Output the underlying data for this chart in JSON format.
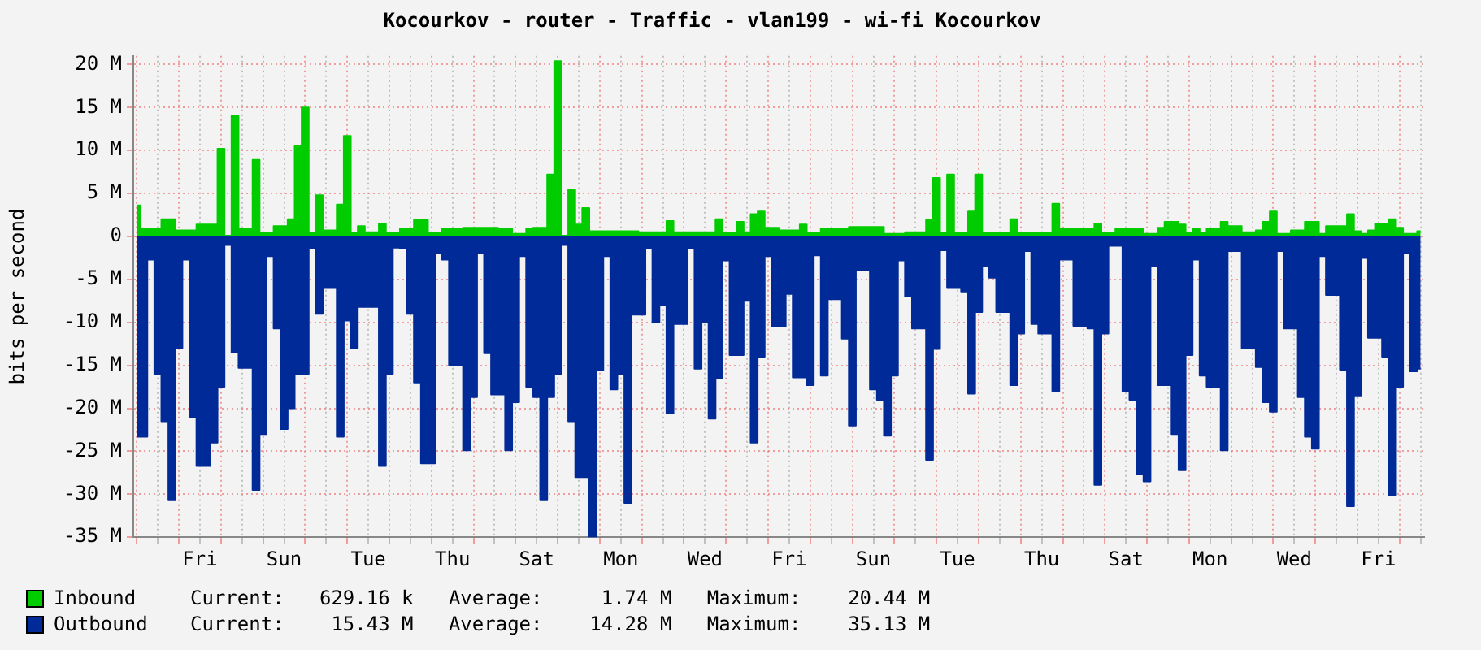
{
  "chart_data": {
    "type": "area",
    "title": "Kocourkov - router - Traffic - vlan199 - wi-fi Kocourkov",
    "ylabel": "bits per second",
    "categories": [
      null,
      null,
      null,
      null,
      null,
      null,
      null,
      null,
      null,
      "Fri",
      null,
      null,
      null,
      null,
      null,
      null,
      null,
      null,
      null,
      null,
      null,
      "Sun",
      null,
      null,
      null,
      null,
      null,
      null,
      null,
      null,
      null,
      null,
      null,
      "Tue",
      null,
      null,
      null,
      null,
      null,
      null,
      null,
      null,
      null,
      null,
      null,
      "Thu",
      null,
      null,
      null,
      null,
      null,
      null,
      null,
      null,
      null,
      null,
      null,
      "Sat",
      null,
      null,
      null,
      null,
      null,
      null,
      null,
      null,
      null,
      null,
      null,
      "Mon",
      null,
      null,
      null,
      null,
      null,
      null,
      null,
      null,
      null,
      null,
      null,
      "Wed",
      null,
      null,
      null,
      null,
      null,
      null,
      null,
      null,
      null,
      null,
      null,
      "Fri",
      null,
      null,
      null,
      null,
      null,
      null,
      null,
      null,
      null,
      null,
      null,
      "Sun",
      null,
      null,
      null,
      null,
      null,
      null,
      null,
      null,
      null,
      null,
      null,
      "Tue",
      null,
      null,
      null,
      null,
      null,
      null,
      null,
      null,
      null,
      null,
      null,
      "Thu",
      null,
      null,
      null,
      null,
      null,
      null,
      null,
      null,
      null,
      null,
      null,
      "Sat",
      null,
      null,
      null,
      null,
      null,
      null,
      null,
      null,
      null,
      null,
      null,
      "Mon",
      null,
      null,
      null,
      null,
      null,
      null,
      null,
      null,
      null,
      null,
      null,
      "Wed",
      null,
      null,
      null,
      null,
      null,
      null,
      null,
      null,
      null,
      null,
      null,
      "Fri",
      null,
      null,
      null,
      null,
      null,
      null
    ],
    "ylim": [
      -35,
      21
    ],
    "yticks": [
      {
        "value": 20,
        "label": "20 M"
      },
      {
        "value": 15,
        "label": "15 M"
      },
      {
        "value": 10,
        "label": "10 M"
      },
      {
        "value": 5,
        "label": "5 M"
      },
      0,
      {
        "value": -5,
        "label": "-5 M"
      },
      {
        "value": -10,
        "label": "-10 M"
      },
      {
        "value": -15,
        "label": "-15 M"
      },
      {
        "value": -20,
        "label": "-20 M"
      },
      {
        "value": -25,
        "label": "-25 M"
      },
      {
        "value": -30,
        "label": "-30 M"
      },
      {
        "value": -35,
        "label": "-35 M"
      }
    ],
    "grid": true,
    "legend": "bottom",
    "annotations": [
      "Current:   629.16 k   Average:     1.74 M   Maximum:    20.44 M",
      "Current:    15.43 M   Average:    14.28 M   Maximum:    35.13 M"
    ],
    "series": [
      {
        "name": "Inbound",
        "color": "#00cc00",
        "values": [
          3.6,
          0.9,
          0.9,
          0.9,
          2,
          2,
          0.7,
          0.7,
          0.7,
          1.4,
          1.4,
          1.4,
          10.2,
          0.1,
          14,
          0.9,
          0.9,
          8.9,
          0.4,
          0.4,
          1.2,
          1.2,
          2,
          10.5,
          15,
          0.4,
          4.8,
          0.7,
          0.7,
          3.7,
          11.7,
          0.4,
          1.2,
          0.5,
          0.5,
          1.5,
          0.4,
          0.4,
          0.9,
          0.9,
          1.9,
          1.9,
          0.4,
          0.4,
          0.9,
          0.9,
          0.9,
          1,
          1,
          1,
          1,
          1,
          0.9,
          0.9,
          0.3,
          0.3,
          0.9,
          1,
          1,
          7.2,
          20.4,
          0.1,
          5.4,
          1.4,
          3.3,
          0.6,
          0.6,
          0.6,
          0.6,
          0.6,
          0.6,
          0.6,
          0.5,
          0.5,
          0.5,
          0.5,
          1.8,
          0.5,
          0.5,
          0.5,
          0.5,
          0.5,
          0.5,
          2,
          0.4,
          0.4,
          1.7,
          0.5,
          2.6,
          2.9,
          1,
          1,
          0.7,
          0.7,
          0.7,
          1.4,
          0.4,
          0.4,
          0.9,
          0.9,
          0.9,
          0.9,
          1.1,
          1.1,
          1.1,
          1.1,
          1.1,
          0.3,
          0.3,
          0.3,
          0.5,
          0.5,
          0.5,
          1.9,
          6.8,
          0.4,
          7.2,
          0.4,
          0.4,
          2.9,
          7.2,
          0.4,
          0.4,
          0.4,
          0.4,
          2,
          0.4,
          0.4,
          0.4,
          0.4,
          0.4,
          3.8,
          0.9,
          0.9,
          0.9,
          0.9,
          0.9,
          1.5,
          0.4,
          0.4,
          0.9,
          0.9,
          0.9,
          0.9,
          0.3,
          0.3,
          1,
          1.7,
          1.7,
          1.4,
          0.4,
          0.9,
          0.4,
          0.9,
          0.9,
          1.7,
          1.2,
          1.2,
          0.5,
          0.5,
          0.7,
          1.7,
          2.9,
          0.3,
          0.3,
          0.7,
          0.7,
          1.7,
          1.7,
          0.3,
          1.2,
          1.2,
          1.2,
          2.6,
          0.6,
          0.3,
          0.7,
          1.5,
          1.5,
          2,
          1,
          0.3,
          0.3,
          0.6
        ]
      },
      {
        "name": "Outbound",
        "color": "#002a97",
        "values": [
          -23.3,
          -23.3,
          -2.7,
          -16,
          -21.5,
          -30.7,
          -13,
          -2.7,
          -21,
          -26.7,
          -26.7,
          -24,
          -17.5,
          -1,
          -13.5,
          -15.3,
          -15.3,
          -29.5,
          -23,
          -2.3,
          -10.7,
          -22.4,
          -20,
          -16,
          -16,
          -1.4,
          -9,
          -6,
          -6,
          -23.3,
          -9.8,
          -13,
          -8.2,
          -8.2,
          -8.2,
          -26.7,
          -16,
          -1.3,
          -1.4,
          -9,
          -17,
          -26.4,
          -26.4,
          -2,
          -2.7,
          -15,
          -15,
          -24.9,
          -18.7,
          -2,
          -13.6,
          -18.4,
          -18.4,
          -24.9,
          -19.3,
          -2.3,
          -17.5,
          -18.7,
          -30.7,
          -18.7,
          -16,
          -1,
          -21.5,
          -28,
          -28,
          -35,
          -15.6,
          -2.3,
          -17.8,
          -16,
          -31,
          -9.1,
          -9.1,
          -1.4,
          -10,
          -8,
          -20.6,
          -10.2,
          -10.2,
          -1.4,
          -15.4,
          -10,
          -21.2,
          -16.5,
          -2.8,
          -13.8,
          -13.8,
          -7.5,
          -24,
          -14,
          -2.3,
          -10.4,
          -10.5,
          -6.7,
          -16.4,
          -16.4,
          -17.3,
          -2.2,
          -16.2,
          -7.3,
          -7.3,
          -11.9,
          -22,
          -3.9,
          -3.9,
          -17.8,
          -19,
          -23.2,
          -16.2,
          -2.8,
          -7,
          -10.7,
          -10.7,
          -26,
          -13.1,
          -1.6,
          -6,
          -6,
          -6.4,
          -18.3,
          -8.8,
          -3.4,
          -4.8,
          -8.8,
          -8.8,
          -17.3,
          -11.3,
          -1.7,
          -10.2,
          -11.3,
          -11.3,
          -18,
          -2.7,
          -2.7,
          -10.4,
          -10.4,
          -10.7,
          -28.9,
          -11.3,
          -1.1,
          -1.1,
          -18,
          -19,
          -27.7,
          -28.5,
          -3.5,
          -17.3,
          -17.3,
          -23,
          -27.2,
          -13.8,
          -2.7,
          -16.2,
          -17.5,
          -17.5,
          -24.9,
          -1.7,
          -1.7,
          -13,
          -13,
          -15.2,
          -19.3,
          -20.4,
          -1.7,
          -10.7,
          -10.7,
          -18.7,
          -23.3,
          -24.7,
          -2.3,
          -6.8,
          -6.8,
          -15.5,
          -31.4,
          -18.5,
          -2.5,
          -11.8,
          -11.8,
          -14,
          -30.1,
          -17.5,
          -2,
          -15.7,
          -15.4
        ]
      }
    ]
  }
}
